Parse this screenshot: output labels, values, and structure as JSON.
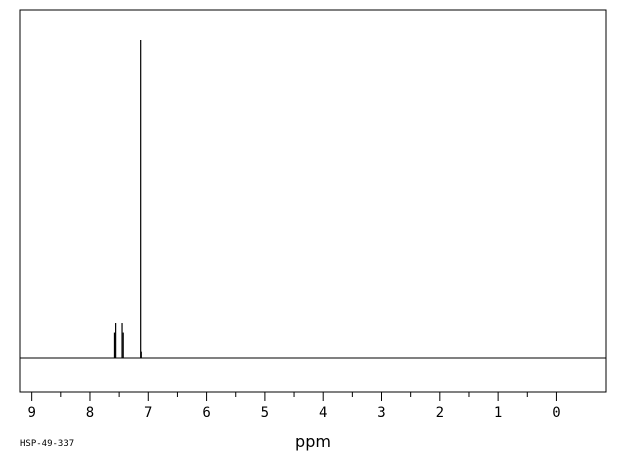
{
  "spectrum_code": "HSP-49-337",
  "chart_data": {
    "type": "line",
    "title": "",
    "xlabel": "ppm",
    "ylabel": "",
    "x_reversed": true,
    "xlim": [
      9.2,
      -0.85
    ],
    "x_ticks": [
      9,
      8,
      7,
      6,
      5,
      4,
      3,
      2,
      1,
      0
    ],
    "x_tick_labels": [
      "9",
      "8",
      "7",
      "6",
      "5",
      "4",
      "3",
      "2",
      "1",
      "0"
    ],
    "minor_tick_step": 0.5,
    "ylim": [
      0,
      1
    ],
    "grid": false,
    "series": [
      {
        "peaks": [
          {
            "ppm": 7.58,
            "height": 0.08
          },
          {
            "ppm": 7.56,
            "height": 0.11
          },
          {
            "ppm": 7.45,
            "height": 0.11
          },
          {
            "ppm": 7.43,
            "height": 0.08
          },
          {
            "ppm": 7.13,
            "height": 1.0
          },
          {
            "ppm": 7.12,
            "height": 0.02
          }
        ]
      }
    ]
  }
}
